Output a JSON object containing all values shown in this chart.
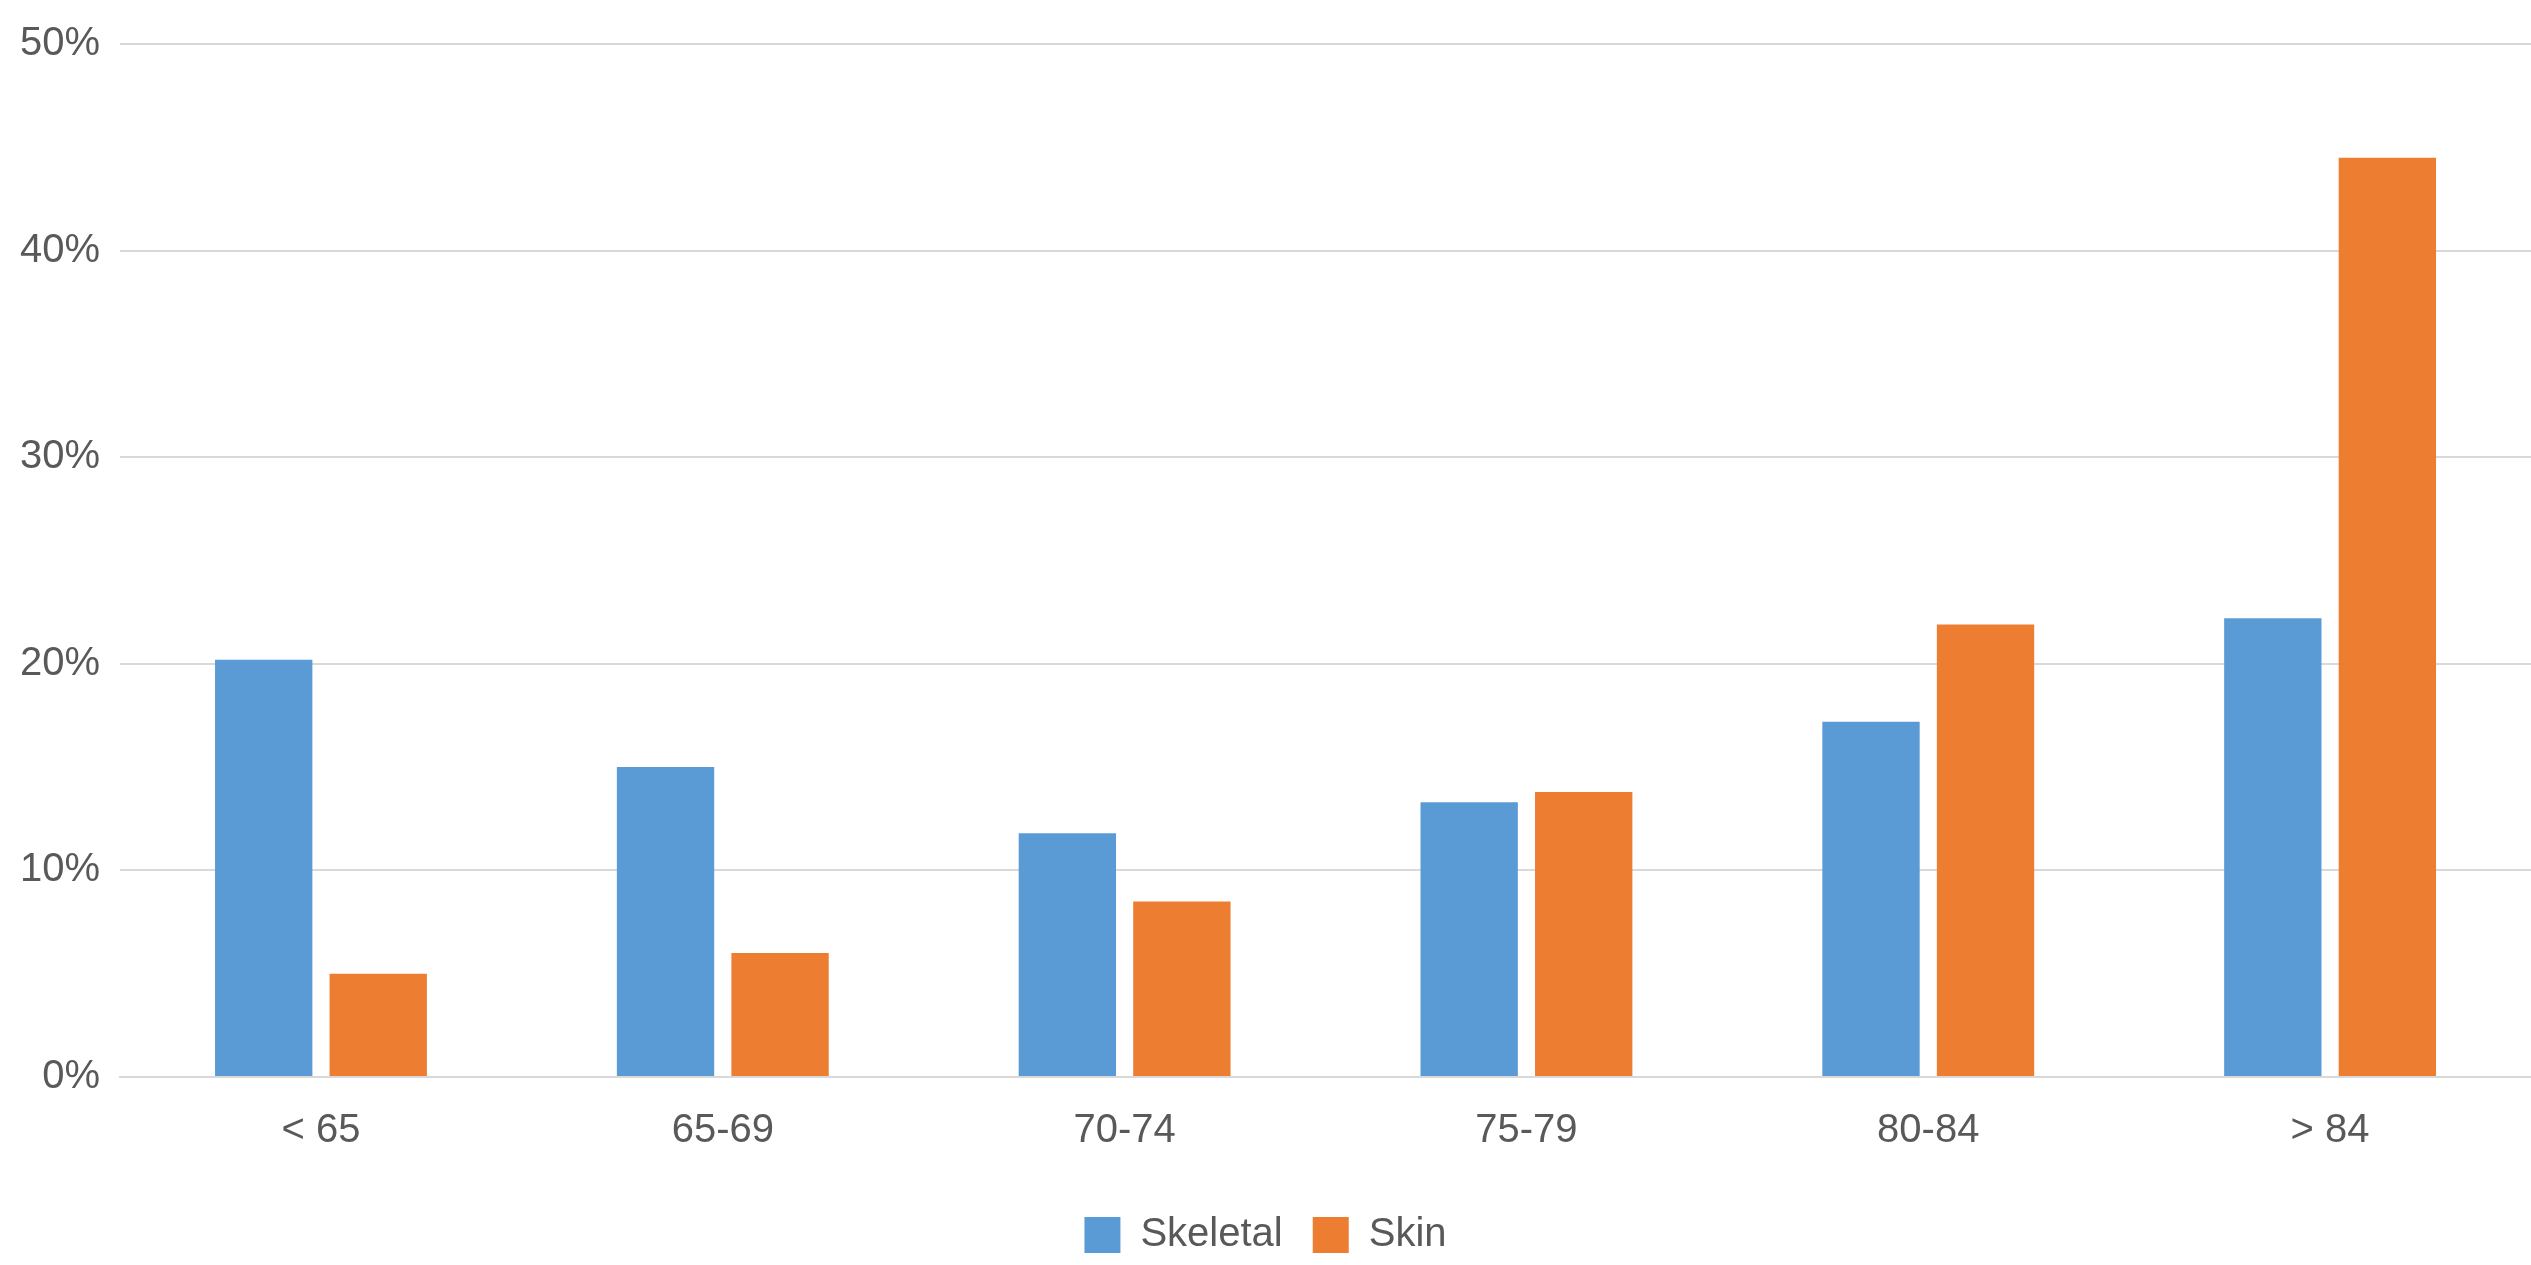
{
  "chart_data": {
    "type": "bar",
    "categories": [
      "< 65",
      "65-69",
      "70-74",
      "75-79",
      "80-84",
      "> 84"
    ],
    "series": [
      {
        "name": "Skeletal",
        "color": "#5b9bd5",
        "values": [
          20.2,
          15.0,
          11.8,
          13.3,
          17.2,
          22.2
        ]
      },
      {
        "name": "Skin",
        "color": "#ed7d31",
        "values": [
          5.0,
          6.0,
          8.5,
          13.8,
          21.9,
          44.5
        ]
      }
    ],
    "ylim": [
      0,
      50
    ],
    "yticks": [
      {
        "value": 0,
        "label": "0%"
      },
      {
        "value": 10,
        "label": "10%"
      },
      {
        "value": 20,
        "label": "20%"
      },
      {
        "value": 30,
        "label": "30%"
      },
      {
        "value": 40,
        "label": "40%"
      },
      {
        "value": 50,
        "label": "50%"
      }
    ],
    "grid": "y",
    "legend": "bottom"
  }
}
